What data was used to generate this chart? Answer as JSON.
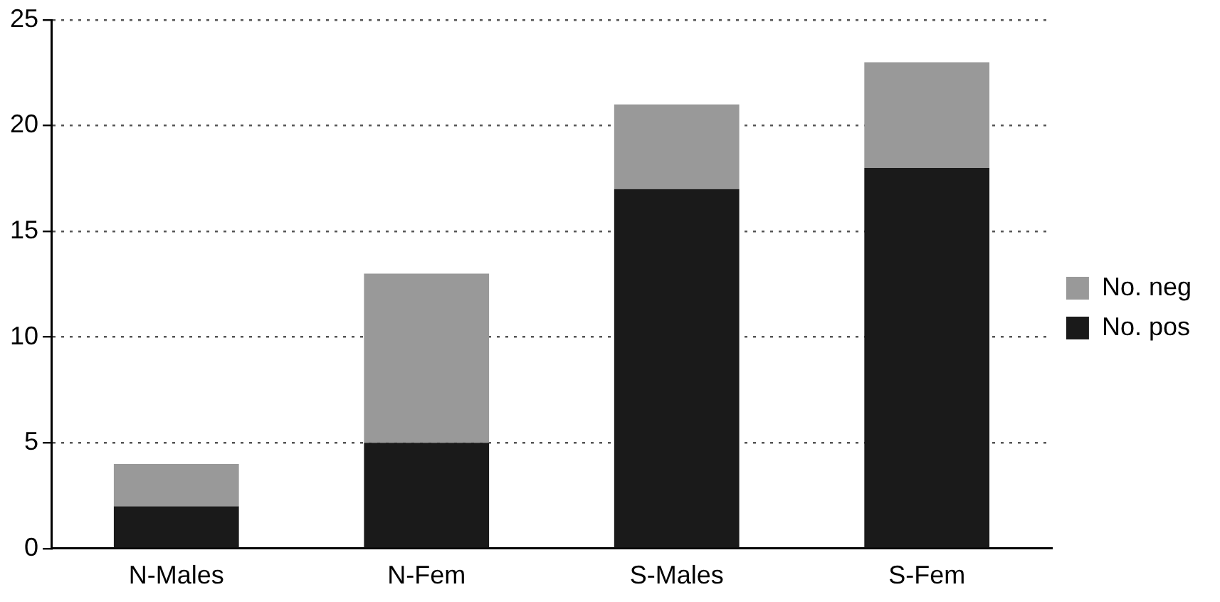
{
  "chart_data": {
    "type": "bar",
    "stacked": true,
    "categories": [
      "N-Males",
      "N-Fem",
      "S-Males",
      "S-Fem"
    ],
    "series": [
      {
        "name": "No. pos",
        "color": "#1a1a1a",
        "values": [
          2,
          5,
          17,
          18
        ]
      },
      {
        "name": "No. neg",
        "color": "#999999",
        "values": [
          2,
          8,
          4,
          5
        ]
      }
    ],
    "ylim": [
      0,
      25
    ],
    "yticks": [
      0,
      5,
      10,
      15,
      20,
      25
    ],
    "grid": "y",
    "legend": "right"
  }
}
